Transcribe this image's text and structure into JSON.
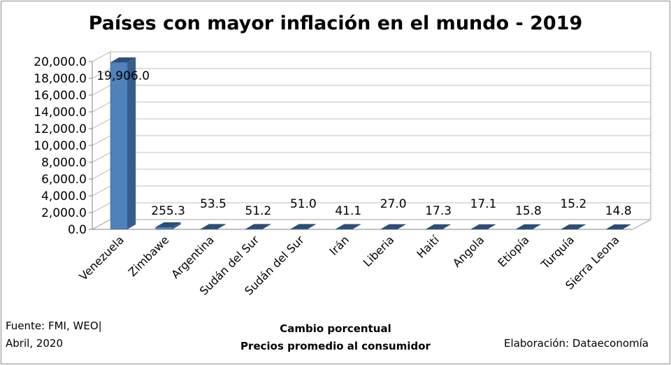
{
  "chart_data": {
    "type": "bar",
    "title": "Países con mayor inflación en el mundo - 2019",
    "xlabel_line1": "Cambio porcentual",
    "xlabel_line2": "Precios promedio al consumidor",
    "ylabel": "",
    "categories": [
      "Venezuela",
      "Zimbawe",
      "Argentina",
      "Sudán del Sur",
      "Sudán del Sur",
      "Irán",
      "Liberia",
      "Haití",
      "Angola",
      "Etiopía",
      "Turquía",
      "Sierra Leona"
    ],
    "values": [
      19906.0,
      255.3,
      53.5,
      51.2,
      51.0,
      41.1,
      27.0,
      17.3,
      17.1,
      15.8,
      15.2,
      14.8
    ],
    "data_labels": [
      "19,906.0",
      "255.3",
      "53.5",
      "51.2",
      "51.0",
      "41.1",
      "27.0",
      "17.3",
      "17.1",
      "15.8",
      "15.2",
      "14.8"
    ],
    "ylim": [
      0,
      20000
    ],
    "yticks": [
      0,
      2000,
      4000,
      6000,
      8000,
      10000,
      12000,
      14000,
      16000,
      18000,
      20000
    ],
    "ytick_labels": [
      "0.0",
      "2,000.0",
      "4,000.0",
      "6,000.0",
      "8,000.0",
      "10,000.0",
      "12,000.0",
      "14,000.0",
      "16,000.0",
      "18,000.0",
      "20,000.0"
    ],
    "grid": true,
    "legend": "none",
    "bar_color": "#4f81bd",
    "bar_side_color": "#385d8a",
    "bar_top_color": "#2c4d75"
  },
  "footer": {
    "source_line1": "Fuente: FMI, WEO|",
    "source_line2": "Abril, 2020",
    "credit": "Elaboración: Dataeconomía"
  }
}
